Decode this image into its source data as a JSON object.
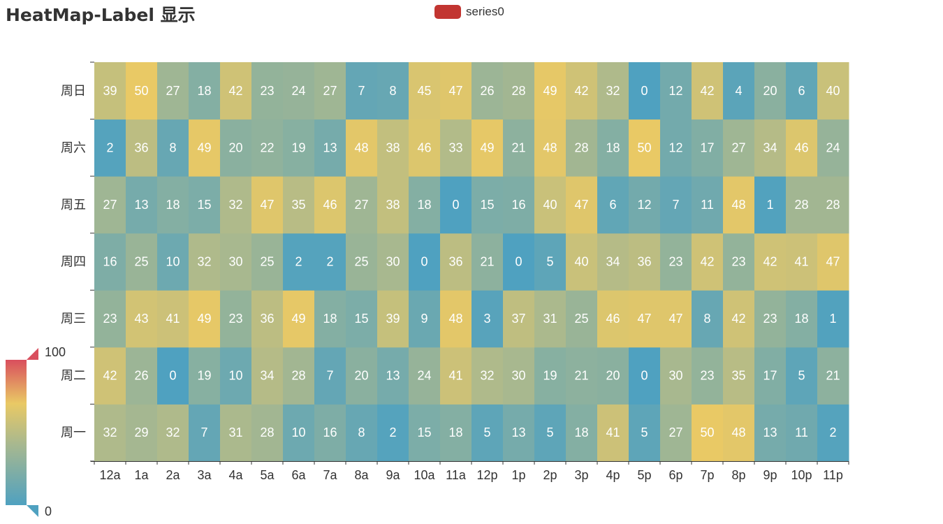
{
  "colors": {
    "legend_swatch": "#c23531",
    "axis": "#333333",
    "scale_low": "#4fa1c0",
    "scale_mid": "#e9c965",
    "scale_high": "#d94e5d",
    "cell_text": "#ffffff"
  },
  "chart_data": {
    "type": "heatmap",
    "title": "HeatMap-Label 显示",
    "legend": [
      "series0"
    ],
    "legend_position": "top-center",
    "x_categories": [
      "12a",
      "1a",
      "2a",
      "3a",
      "4a",
      "5a",
      "6a",
      "7a",
      "8a",
      "9a",
      "10a",
      "11a",
      "12p",
      "1p",
      "2p",
      "3p",
      "4p",
      "5p",
      "6p",
      "7p",
      "8p",
      "9p",
      "10p",
      "11p"
    ],
    "y_categories": [
      "周一",
      "周二",
      "周三",
      "周四",
      "周五",
      "周六",
      "周日"
    ],
    "values": [
      [
        32,
        29,
        32,
        7,
        31,
        28,
        10,
        16,
        8,
        2,
        15,
        18,
        5,
        13,
        5,
        18,
        41,
        5,
        27,
        50,
        48,
        13,
        11,
        2
      ],
      [
        42,
        26,
        0,
        19,
        10,
        34,
        28,
        7,
        20,
        13,
        24,
        41,
        32,
        30,
        19,
        21,
        20,
        0,
        30,
        23,
        35,
        17,
        5,
        21
      ],
      [
        23,
        43,
        41,
        49,
        23,
        36,
        49,
        18,
        15,
        39,
        9,
        48,
        3,
        37,
        31,
        25,
        46,
        47,
        47,
        8,
        42,
        23,
        18,
        1
      ],
      [
        16,
        25,
        10,
        32,
        30,
        25,
        2,
        2,
        25,
        30,
        0,
        36,
        21,
        0,
        5,
        40,
        34,
        36,
        23,
        42,
        23,
        42,
        41,
        47
      ],
      [
        27,
        13,
        18,
        15,
        32,
        47,
        35,
        46,
        27,
        38,
        18,
        0,
        15,
        16,
        40,
        47,
        6,
        12,
        7,
        11,
        48,
        1,
        28,
        28
      ],
      [
        2,
        36,
        8,
        49,
        20,
        22,
        19,
        13,
        48,
        38,
        46,
        33,
        49,
        21,
        48,
        28,
        18,
        50,
        12,
        17,
        27,
        34,
        46,
        24
      ],
      [
        39,
        50,
        27,
        18,
        42,
        23,
        24,
        27,
        7,
        8,
        45,
        47,
        26,
        28,
        49,
        42,
        32,
        0,
        12,
        42,
        4,
        20,
        6,
        40
      ]
    ],
    "visual_map": {
      "min": 0,
      "max": 100,
      "min_label": "0",
      "max_label": "100",
      "position": "bottom-left"
    },
    "grid": false
  }
}
